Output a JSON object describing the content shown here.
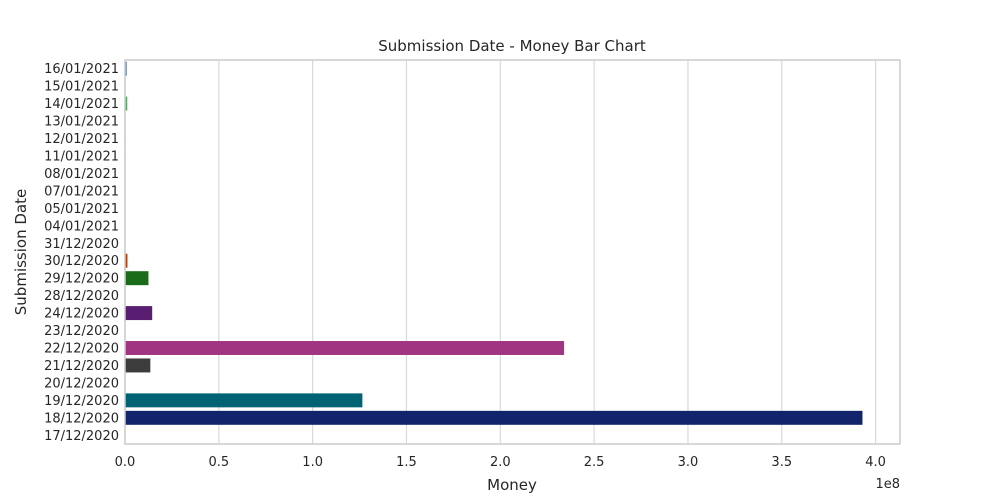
{
  "chart_data": {
    "type": "bar",
    "orientation": "horizontal",
    "title": "Submission Date - Money Bar Chart",
    "xlabel": "Money",
    "ylabel": "Submission Date",
    "x_scale_label": "1e8",
    "x_scale": 100000000,
    "xlim": [
      0,
      4.13
    ],
    "x_ticks": [
      0.0,
      0.5,
      1.0,
      1.5,
      2.0,
      2.5,
      3.0,
      3.5,
      4.0
    ],
    "x_tick_labels": [
      "0.0",
      "0.5",
      "1.0",
      "1.5",
      "2.0",
      "2.5",
      "3.0",
      "3.5",
      "4.0"
    ],
    "grid": true,
    "categories": [
      "16/01/2021",
      "15/01/2021",
      "14/01/2021",
      "13/01/2021",
      "12/01/2021",
      "11/01/2021",
      "08/01/2021",
      "07/01/2021",
      "05/01/2021",
      "04/01/2021",
      "31/12/2020",
      "30/12/2020",
      "29/12/2020",
      "28/12/2020",
      "24/12/2020",
      "23/12/2020",
      "22/12/2020",
      "21/12/2020",
      "20/12/2020",
      "19/12/2020",
      "18/12/2020",
      "17/12/2020"
    ],
    "values": [
      900000,
      100000,
      1200000,
      200000,
      300000,
      300000,
      200000,
      200000,
      200000,
      200000,
      100000,
      1300000,
      12500000,
      200000,
      14500000,
      200000,
      234000000,
      13500000,
      200000,
      126500000,
      393000000,
      100000
    ],
    "colors": [
      "#4c72b0",
      "#dd8452",
      "#55a868",
      "#c44e52",
      "#8172b3",
      "#937860",
      "#da8bc3",
      "#8c8c8c",
      "#ccb974",
      "#64b5cd",
      "#001c7f",
      "#b1400d",
      "#1a6b1a",
      "#8c0800",
      "#591e71",
      "#592f0d",
      "#a23582",
      "#3c3c3c",
      "#b8850a",
      "#006374",
      "#12246b",
      "#4c72b0"
    ]
  }
}
